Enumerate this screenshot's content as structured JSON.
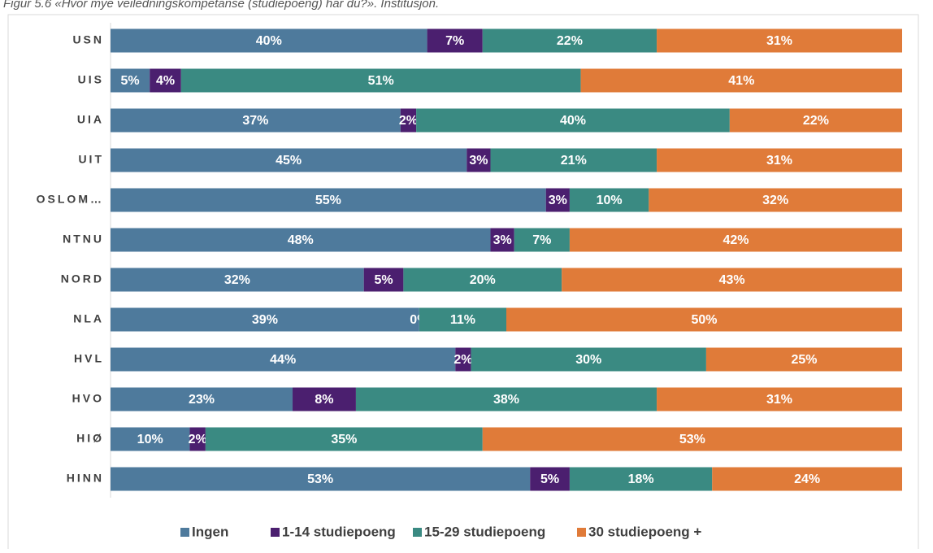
{
  "chart_data": {
    "type": "stacked-bar-100",
    "title": "Figur 5.6 «Hvor mye veiledningskompetanse (studiepoeng) har du?». Institusjon.",
    "categories": [
      "USN",
      "UIS",
      "UIA",
      "UIT",
      "OSLOM…",
      "NTNU",
      "NORD",
      "NLA",
      "HVL",
      "HVO",
      "HIØ",
      "HINN"
    ],
    "series": [
      {
        "name": "Ingen",
        "color": "#4e7a9c",
        "values": [
          40,
          5,
          37,
          45,
          55,
          48,
          32,
          39,
          44,
          23,
          10,
          53
        ],
        "value_labels": [
          "40%",
          "5%",
          "37%",
          "45%",
          "55%",
          "48%",
          "32%",
          "39%",
          "44%",
          "23%",
          "10%",
          "53%"
        ]
      },
      {
        "name": "1-14 studiepoeng",
        "color": "#4b1f6f",
        "values": [
          7,
          4,
          2,
          3,
          3,
          3,
          5,
          0,
          2,
          8,
          2,
          5
        ],
        "value_labels": [
          "7%",
          "4%",
          "2%",
          "3%",
          "3%",
          "3%",
          "5%",
          "0%",
          "2%",
          "8%",
          "2%",
          "5%"
        ]
      },
      {
        "name": "15-29 studiepoeng",
        "color": "#3a8a82",
        "values": [
          22,
          51,
          40,
          21,
          10,
          7,
          20,
          11,
          30,
          38,
          35,
          18
        ],
        "value_labels": [
          "22%",
          "51%",
          "40%",
          "21%",
          "10%",
          "7%",
          "20%",
          "11%",
          "30%",
          "38%",
          "35%",
          "18%"
        ]
      },
      {
        "name": "30 studiepoeng +",
        "color": "#e07b39",
        "values": [
          31,
          41,
          22,
          31,
          32,
          42,
          43,
          50,
          25,
          31,
          53,
          24
        ],
        "value_labels": [
          "31%",
          "41%",
          "22%",
          "31%",
          "32%",
          "42%",
          "43%",
          "50%",
          "25%",
          "31%",
          "53%",
          "24%"
        ]
      }
    ],
    "legend": "bottom"
  }
}
